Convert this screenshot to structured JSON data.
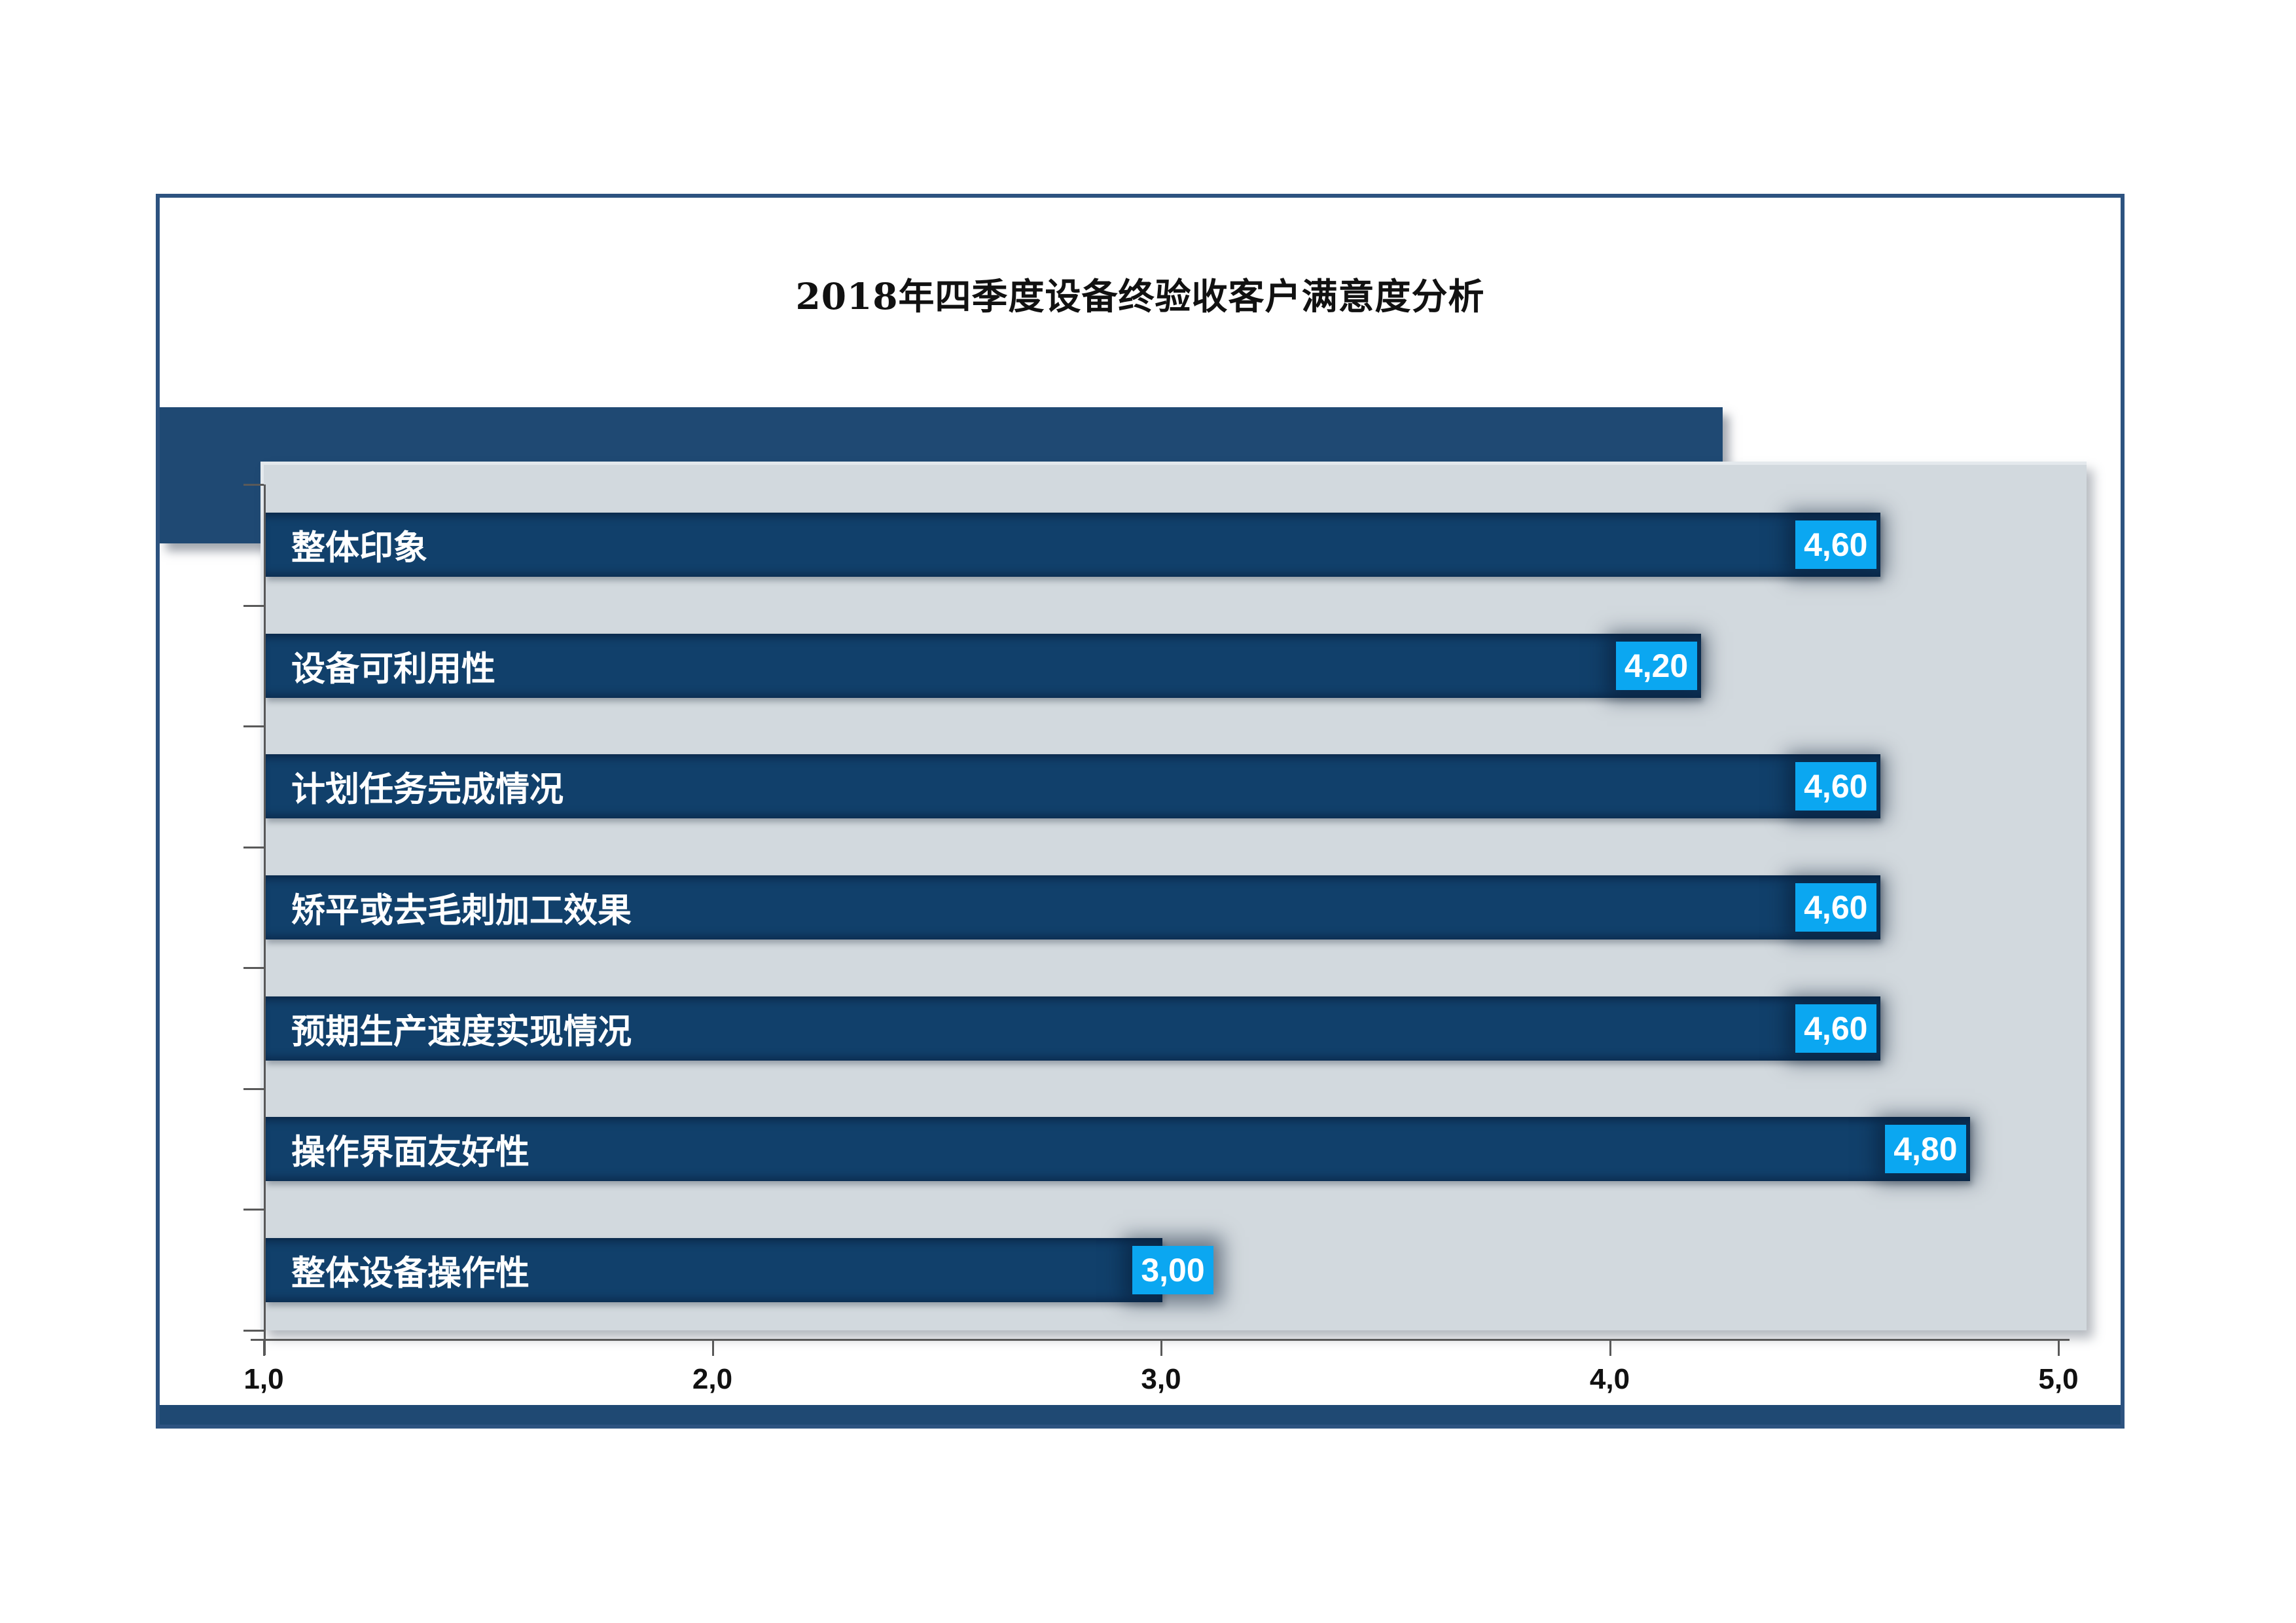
{
  "title": "2018年四季度设备终验收客户满意度分析",
  "chart_data": {
    "type": "bar",
    "orientation": "horizontal",
    "title": "2018年四季度设备终验收客户满意度分析",
    "categories": [
      "整体印象",
      "设备可利用性",
      "计划任务完成情况",
      "矫平或去毛刺加工效果",
      "预期生产速度实现情况",
      "操作界面友好性",
      "整体设备操作性"
    ],
    "values": [
      4.6,
      4.2,
      4.6,
      4.6,
      4.6,
      4.8,
      3.0
    ],
    "value_labels": [
      "4,60",
      "4,20",
      "4,60",
      "4,60",
      "4,60",
      "4,80",
      "3,00"
    ],
    "label_placement": [
      "inside-end",
      "inside-end",
      "inside-end",
      "inside-end",
      "inside-end",
      "inside-end",
      "overhang-end"
    ],
    "x_ticks": [
      "1,0",
      "2,0",
      "3,0",
      "4,0",
      "5,0"
    ],
    "x_tick_values": [
      1.0,
      2.0,
      3.0,
      4.0,
      5.0
    ],
    "xlim": [
      1.0,
      5.0
    ],
    "xlabel": "",
    "ylabel": "",
    "legend": "none",
    "gridlines": "off"
  },
  "colors": {
    "bg": "#ffffff",
    "bar": "#11406b",
    "chip": "#0ba7f1",
    "band": "#1f4973",
    "plot_bg": "#d2d9de",
    "frame_border": "#2d5380",
    "strip": "#1f4973",
    "axis": "#595959",
    "tick_text": "#111111",
    "bar_text": "#ffffff",
    "chip_text": "#ffffff",
    "title_text": "#111111"
  }
}
